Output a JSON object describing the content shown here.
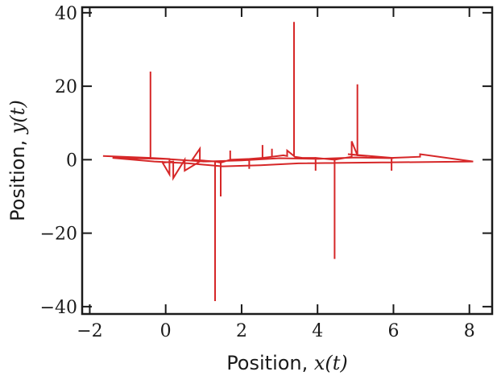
{
  "chart_data": {
    "type": "line",
    "xlabel_prefix": "Position, ",
    "xlabel_math": "x(t)",
    "ylabel_prefix": "Position, ",
    "ylabel_math": "y(t)",
    "xlim": [
      -2.2,
      8.6
    ],
    "ylim": [
      -42,
      41.5
    ],
    "xticks": [
      -2,
      0,
      2,
      4,
      6,
      8
    ],
    "xtick_labels": [
      "−2",
      "0",
      "2",
      "4",
      "6",
      "8"
    ],
    "yticks": [
      -40,
      -20,
      0,
      20,
      40
    ],
    "ytick_labels": [
      "−40",
      "−20",
      "0",
      "20",
      "40"
    ],
    "grid": false,
    "line_color": "#d62728",
    "series": [
      {
        "x": [
          -1.65,
          -0.4,
          -0.4,
          -0.4,
          0.1,
          0.1,
          -0.1,
          -0.05,
          0.2,
          0.2,
          0.5,
          0.5,
          0.9,
          0.9,
          0.7,
          1.3,
          1.3,
          1.3,
          1.45,
          1.45,
          1.45,
          1.7,
          1.7,
          1.7,
          2.2,
          2.2,
          2.2,
          2.55,
          2.55,
          2.55,
          2.8,
          2.8,
          2.8,
          3.1,
          3.2,
          3.2,
          3.38,
          3.38,
          3.38,
          3.4,
          3.6,
          3.95,
          3.95,
          3.95,
          4.45,
          4.45,
          4.45,
          4.9,
          4.9,
          5.05,
          5.05,
          5.05,
          5.3,
          4.8,
          5.95,
          5.95,
          5.95,
          6.7,
          6.7,
          8.1,
          3.5,
          2.5,
          1.5,
          0.6,
          -0.3,
          -1.4,
          0.0,
          1.0,
          2.0,
          3.0,
          4.0,
          5.0,
          6.0
        ],
        "y": [
          1.0,
          0.5,
          24.0,
          0.5,
          0.2,
          -4.0,
          -0.5,
          -0.8,
          -0.5,
          -5.0,
          0.0,
          -3.0,
          -0.5,
          3.0,
          0.0,
          -0.5,
          -38.5,
          -0.5,
          -0.8,
          -10.0,
          -0.8,
          0.0,
          2.5,
          0.0,
          0.2,
          -2.5,
          0.2,
          0.5,
          4.0,
          0.5,
          0.8,
          3.0,
          0.8,
          1.2,
          1.0,
          2.5,
          1.0,
          37.5,
          1.0,
          0.8,
          0.5,
          0.5,
          -3.0,
          0.5,
          0.0,
          -27.0,
          0.0,
          0.8,
          5.0,
          1.2,
          20.5,
          1.2,
          1.0,
          1.5,
          0.5,
          -3.0,
          0.5,
          0.8,
          1.5,
          -0.5,
          -1.0,
          -1.5,
          -1.8,
          -1.0,
          -0.5,
          0.5,
          0.2,
          -0.5,
          -0.2,
          0.4,
          0.2,
          0.6,
          0.4
        ]
      }
    ]
  }
}
